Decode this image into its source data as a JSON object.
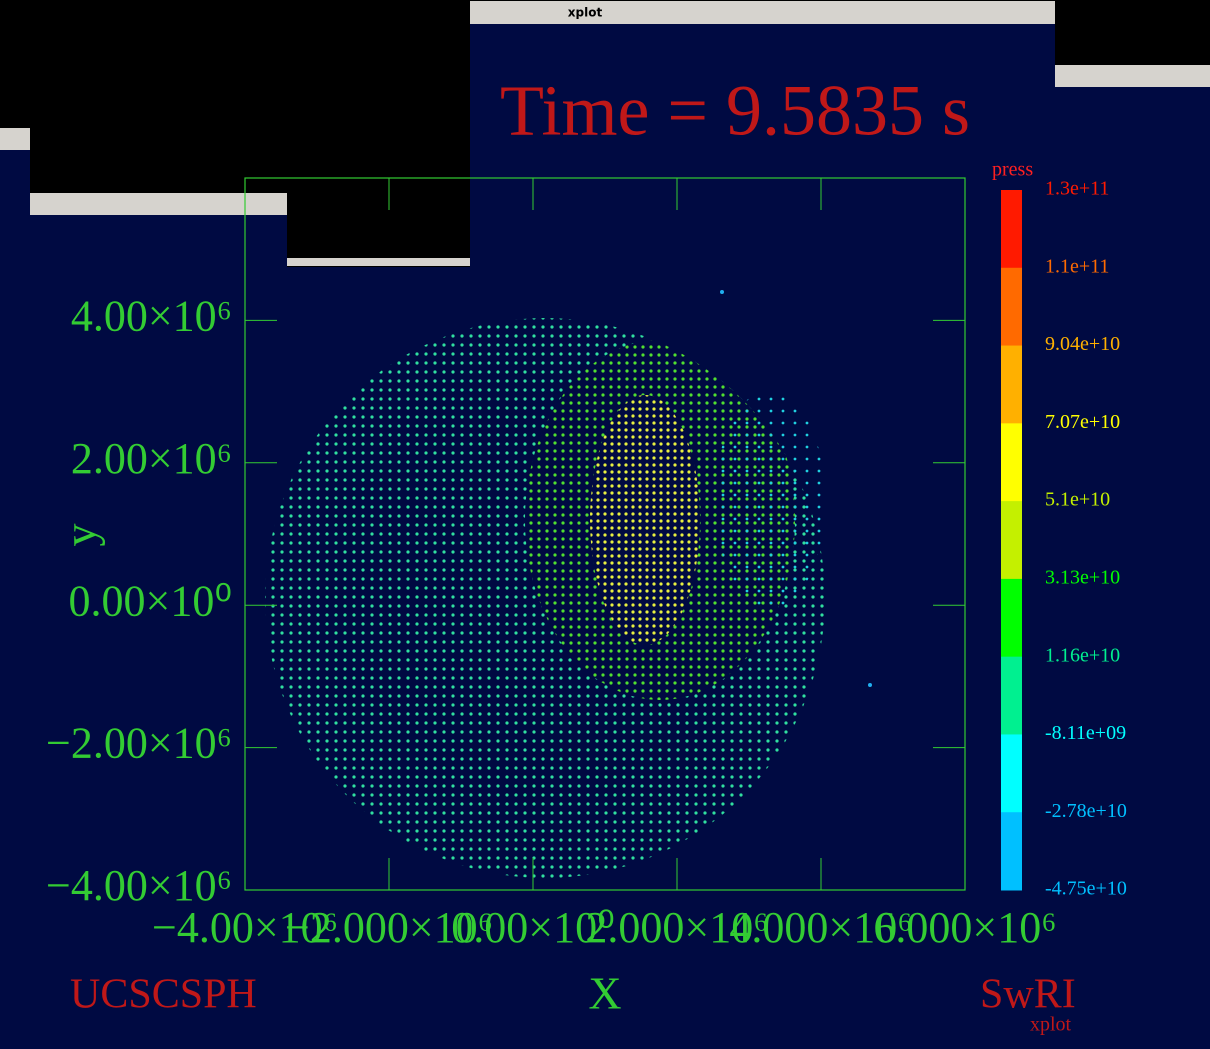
{
  "window_title": "xplot",
  "chart_data": {
    "type": "scatter",
    "title": "Time = 9.5835 s",
    "xlabel": "X",
    "ylabel": "y",
    "xlim": [
      -4000000,
      6000000
    ],
    "ylim": [
      -4000000,
      6000000
    ],
    "xticks": [
      {
        "value": -4000000,
        "label": "−4.00×10⁶"
      },
      {
        "value": -2000000,
        "label": "−2.000×10⁶"
      },
      {
        "value": 0,
        "label": "0.00×10⁰"
      },
      {
        "value": 2000000,
        "label": "2.000×10⁶"
      },
      {
        "value": 4000000,
        "label": "4.000×10⁶"
      },
      {
        "value": 6000000,
        "label": "6.000×10⁶"
      }
    ],
    "yticks": [
      {
        "value": -4000000,
        "label": "−4.00×10⁶"
      },
      {
        "value": -2000000,
        "label": "−2.00×10⁶"
      },
      {
        "value": 0,
        "label": "0.00×10⁰"
      },
      {
        "value": 2000000,
        "label": "2.00×10⁶"
      },
      {
        "value": 4000000,
        "label": "4.00×10⁶"
      }
    ],
    "colorbar": {
      "title": "press",
      "levels": [
        {
          "value": 130000000000,
          "label": "1.3e+11"
        },
        {
          "value": 110000000000,
          "label": "1.1e+11"
        },
        {
          "value": 90400000000,
          "label": "9.04e+10"
        },
        {
          "value": 70700000000,
          "label": "7.07e+10"
        },
        {
          "value": 51000000000,
          "label": "5.1e+10"
        },
        {
          "value": 31300000000,
          "label": "3.13e+10"
        },
        {
          "value": 11600000000,
          "label": "1.16e+10"
        },
        {
          "value": -8110000000,
          "label": "-8.11e+09"
        },
        {
          "value": -27800000000,
          "label": "-2.78e+10"
        },
        {
          "value": -47500000000,
          "label": "-4.75e+10"
        }
      ],
      "colors": [
        "#ff1a00",
        "#ff6a00",
        "#ffb000",
        "#ffff00",
        "#c4f000",
        "#00ff00",
        "#00f090",
        "#00ffff",
        "#00c0ff"
      ]
    },
    "footer_left": "UCSCSPH",
    "footer_right": "SwRI",
    "footer_tag": "xplot"
  }
}
